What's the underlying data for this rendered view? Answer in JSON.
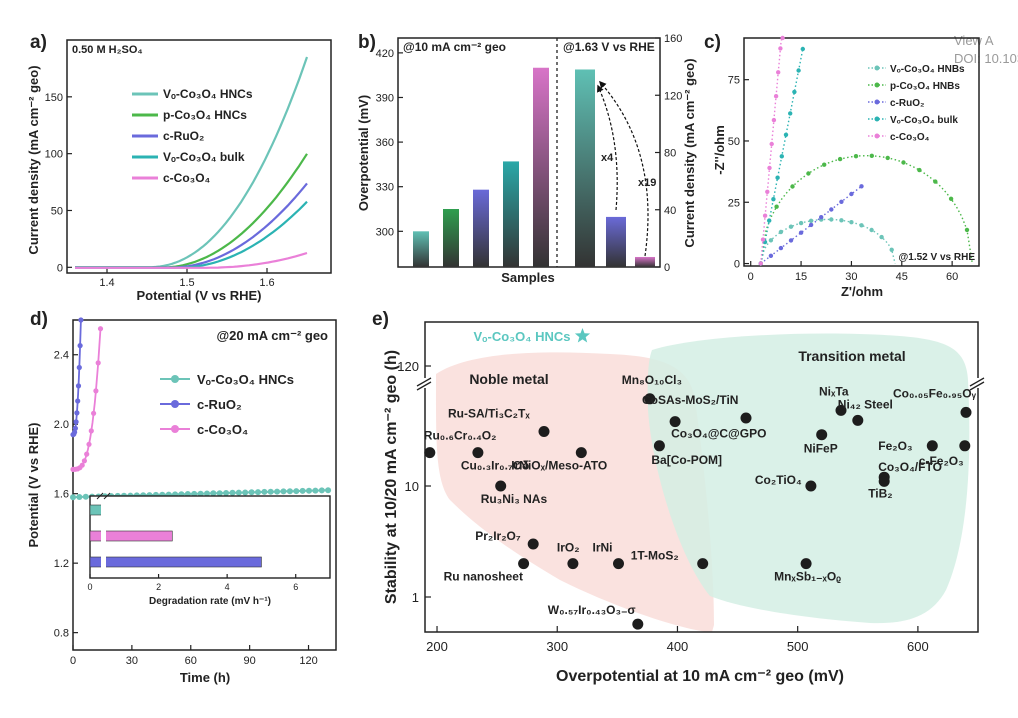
{
  "watermark": {
    "line1": "View A",
    "line2": "DOI: 10.1039/D4"
  },
  "colors": {
    "vo_hncs": "#6cc4b8",
    "p_hncs": "#4cb84a",
    "ruo2": "#6a6adc",
    "vo_bulk": "#2bb3b3",
    "co3o4": "#ea80d8",
    "bar_teal": "#5fc0b4",
    "bar_green": "#2f9e4f",
    "bar_blue": "#6a6ad8",
    "bar_teal2": "#2aa8a8",
    "bar_pink": "#d874c8",
    "noble": "#f8d8d4",
    "transition": "#d4efe4",
    "star": "#5bc7c0",
    "dot": "#1d1d1d"
  },
  "chart_data": [
    {
      "panel": "a",
      "type": "line",
      "note": "0.50 M H₂SO₄",
      "xlabel": "Potential (V vs RHE)",
      "ylabel": "Current density (mA cm⁻² geo)",
      "xlim": [
        1.35,
        1.68
      ],
      "ylim": [
        -5,
        200
      ],
      "xticks": [
        "1.4",
        "1.5",
        "1.6"
      ],
      "yticks": [
        "0",
        "50",
        "100",
        "150"
      ],
      "series": [
        {
          "name": "Vₒ-Co₃O₄ HNCs",
          "onset": 1.45,
          "end": 1.65,
          "end_value": 185,
          "sharp": 2.2
        },
        {
          "name": "p-Co₃O₄ HNCs",
          "onset": 1.47,
          "end": 1.65,
          "end_value": 100,
          "sharp": 2.0
        },
        {
          "name": "c-RuO₂",
          "onset": 1.48,
          "end": 1.65,
          "end_value": 74,
          "sharp": 2.0
        },
        {
          "name": "Vₒ-Co₃O₄ bulk",
          "onset": 1.49,
          "end": 1.65,
          "end_value": 58,
          "sharp": 2.0
        },
        {
          "name": "c-Co₃O₄",
          "onset": 1.52,
          "end": 1.65,
          "end_value": 13,
          "sharp": 2.2
        }
      ]
    },
    {
      "panel": "b",
      "type": "bar",
      "left_label": "@10 mA cm⁻² geo",
      "right_label": "@1.63 V vs RHE",
      "xlabel": "Samples",
      "ylabel": "Overpotential (mV)",
      "y2label": "Current density (mA cm⁻² geo)",
      "ylim": [
        276,
        430
      ],
      "y2lim": [
        0,
        160
      ],
      "yticks": [
        "300",
        "330",
        "360",
        "390",
        "420"
      ],
      "y2ticks": [
        "0",
        "40",
        "80",
        "120",
        "160"
      ],
      "overpotential": [
        300,
        315,
        328,
        347,
        410
      ],
      "current_density": [
        138,
        35,
        7
      ],
      "annotations": [
        "x4",
        "x19"
      ]
    },
    {
      "panel": "c",
      "type": "scatter",
      "note": "@1.52 V vs RHE",
      "xlabel": "Z'/ohm",
      "ylabel": "-Z''/ohm",
      "xlim": [
        -2,
        68
      ],
      "ylim": [
        -1,
        92
      ],
      "xticks": [
        "0",
        "15",
        "30",
        "45",
        "60"
      ],
      "yticks": [
        "0",
        "25",
        "50",
        "75"
      ],
      "series": [
        {
          "name": "Vₒ-Co₃O₄ HNBs",
          "kind": "arc",
          "x0": 3,
          "x1": 43,
          "peak": 18
        },
        {
          "name": "p-Co₃O₄ HNBs",
          "kind": "arc",
          "x0": 3,
          "x1": 66,
          "peak": 44
        },
        {
          "name": "c-RuO₂",
          "kind": "line",
          "x0": 3,
          "slope": 1.05,
          "xmax": 33
        },
        {
          "name": "Vₒ-Co₃O₄ bulk",
          "kind": "line",
          "x0": 3,
          "slope": 7.0,
          "xmax": 15.5
        },
        {
          "name": "c-Co₃O₄",
          "kind": "line",
          "x0": 3,
          "slope": 15.0,
          "xmax": 9.5
        }
      ]
    },
    {
      "panel": "d",
      "type": "line",
      "note": "@20 mA cm⁻² geo",
      "xlabel": "Time (h)",
      "ylabel": "Potential (V vs RHE)",
      "xlim": [
        0,
        134
      ],
      "ylim": [
        0.7,
        2.6
      ],
      "xticks": [
        "0",
        "30",
        "60",
        "90",
        "120"
      ],
      "yticks": [
        "0.8",
        "1.2",
        "1.6",
        "2.0",
        "2.4"
      ],
      "series": [
        {
          "name": "Vₒ-Co₃O₄ HNCs",
          "start": 1.58,
          "end": 1.62,
          "duration": 130
        },
        {
          "name": "c-RuO₂",
          "start": 1.94,
          "end": 2.6,
          "duration": 4
        },
        {
          "name": "c-Co₃O₄",
          "start": 1.74,
          "end": 2.55,
          "duration": 14
        }
      ],
      "inset": {
        "xlabel": "Degradation rate (mV h⁻¹)",
        "xticks": [
          "0",
          "2",
          "4",
          "6"
        ],
        "values": [
          0.35,
          2.4,
          5.0
        ]
      }
    },
    {
      "panel": "e",
      "type": "scatter",
      "xlabel": "Overpotential at 10 mA cm⁻² geo (mV)",
      "ylabel": "Stability at 10/20 mA cm⁻² geo (h)",
      "xlim": [
        190,
        650
      ],
      "xticks": [
        "200",
        "300",
        "400",
        "500",
        "600"
      ],
      "yticks": [
        "1",
        "10",
        "120"
      ],
      "regions": [
        "Noble metal",
        "Transition metal"
      ],
      "highlight": {
        "label": "Vₒ-Co₃O₄ HNCs",
        "x": 321,
        "y": 130
      },
      "points": [
        {
          "label": "Ru₀.₆Cr₀.₄O₂",
          "x": 194,
          "y": 20
        },
        {
          "label": "Cu₀.₃Ir₀.₇Oδ",
          "x": 234,
          "y": 20
        },
        {
          "label": "Ru₃Ni₃ NAs",
          "x": 253,
          "y": 10
        },
        {
          "label": "Ru-SA/Ti₃C₂Tₓ",
          "x": 289,
          "y": 31
        },
        {
          "label": "IrNiOₓ/Meso-ATO",
          "x": 320,
          "y": 20
        },
        {
          "label": "Pr₂Ir₂O₇",
          "x": 280,
          "y": 3
        },
        {
          "label": "Ru nanosheet",
          "x": 272,
          "y": 2
        },
        {
          "label": "IrO₂",
          "x": 313,
          "y": 2
        },
        {
          "label": "IrNi",
          "x": 351,
          "y": 2
        },
        {
          "label": "W₀.₅₇Ir₀.₄₃O₃₋σ",
          "x": 367,
          "y": 0.57
        },
        {
          "label": "Mn₈O₁₀Cl₃",
          "x": 377,
          "y": 61
        },
        {
          "label": "CoSAs-MoS₂/TiN",
          "x": 457,
          "y": 41
        },
        {
          "label": "Co₃O₄@C@GPO",
          "x": 398,
          "y": 38
        },
        {
          "label": "Ba[Co-POM]",
          "x": 385,
          "y": 23
        },
        {
          "label": "NiₓTa",
          "x": 536,
          "y": 48
        },
        {
          "label": "Ni₄₂ Steel",
          "x": 550,
          "y": 39
        },
        {
          "label": "NiFeP",
          "x": 520,
          "y": 29
        },
        {
          "label": "Co₀.₀₅Fe₀.₉₅Oᵧ",
          "x": 640,
          "y": 46
        },
        {
          "label": "Fe₂O₃",
          "x": 612,
          "y": 23
        },
        {
          "label": "c-Fe₂O₃",
          "x": 639,
          "y": 23
        },
        {
          "label": "Co₃O₄/FTO",
          "x": 572,
          "y": 12
        },
        {
          "label": "TiB₂",
          "x": 572,
          "y": 11
        },
        {
          "label": "Co₂TiO₄",
          "x": 511,
          "y": 10
        },
        {
          "label": "1T-MoS₂",
          "x": 421,
          "y": 2
        },
        {
          "label": "MnₓSb₁₋ₓOᵨ",
          "x": 507,
          "y": 2
        }
      ]
    }
  ]
}
